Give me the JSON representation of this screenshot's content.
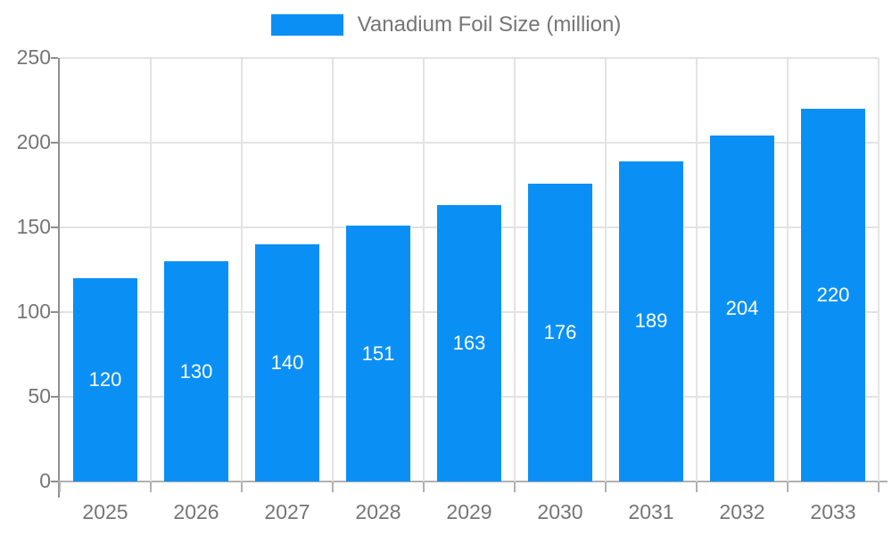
{
  "legend": {
    "label": "Vanadium Foil Size (million)"
  },
  "chart_data": {
    "type": "bar",
    "title": "Vanadium Foil Size (million)",
    "categories": [
      "2025",
      "2026",
      "2027",
      "2028",
      "2029",
      "2030",
      "2031",
      "2032",
      "2033"
    ],
    "series": [
      {
        "name": "Vanadium Foil Size (million)",
        "values": [
          120,
          130,
          140,
          151,
          163,
          176,
          189,
          204,
          220
        ]
      }
    ],
    "xlabel": "",
    "ylabel": "",
    "ylim": [
      0,
      250
    ],
    "yticks": [
      0,
      50,
      100,
      150,
      200,
      250
    ],
    "grid": true,
    "legend_position": "top",
    "bar_value_labels_shown": true,
    "colors": {
      "bar": "#0a90f5",
      "bar_label_text": "#ffffff",
      "axis_text": "#757575",
      "grid_line": "#e3e3e3",
      "y_axis_line": "#8f8f8f",
      "x_axis_line": "#b0b0b0",
      "background": "#ffffff"
    }
  }
}
